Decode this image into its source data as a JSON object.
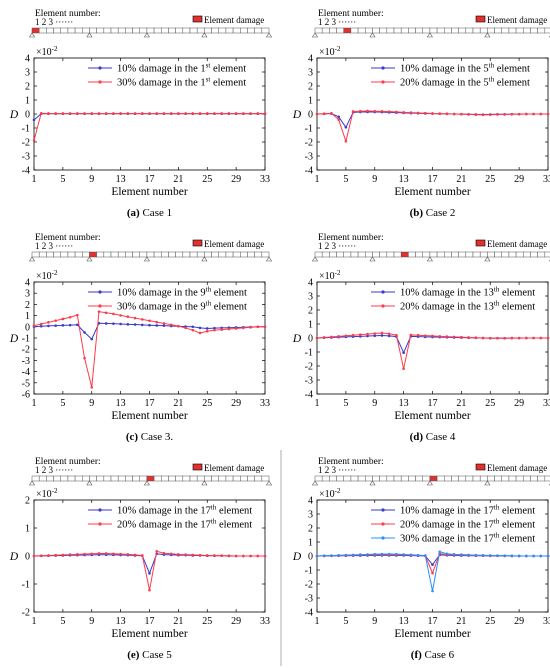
{
  "figure": {
    "beam_header": "Element number:",
    "beam_numbers": "1 2 3",
    "beam_dots": "······",
    "damage_legend": "Element damage",
    "xlabel": "Element number",
    "ylabel": "D",
    "multiplier": "×10",
    "multiplier_exp": "-2",
    "element_count": 33,
    "colors": {
      "blue": "#3a3acd",
      "red": "#ff3a4a",
      "lightblue": "#2a8cff",
      "damage": "#e03030"
    }
  },
  "chart_data": [
    {
      "type": "line",
      "caption": {
        "label": "(a)",
        "text": "Case 1"
      },
      "damaged_elements": [
        1
      ],
      "xticks": [
        1,
        5,
        9,
        13,
        17,
        21,
        25,
        29,
        33
      ],
      "yticks": [
        -4,
        -3,
        -2,
        -1,
        0,
        1,
        2,
        3,
        4
      ],
      "ylim": [
        -4,
        4
      ],
      "series": [
        {
          "legend": [
            "10% damage in the 1",
            "st",
            " element"
          ],
          "color": "#3a3acd",
          "values": [
            -0.42,
            0.02,
            0.02,
            0.02,
            0.02,
            0.02,
            0.02,
            0.02,
            0.02,
            0.02,
            0.02,
            0.02,
            0.02,
            0.02,
            0.02,
            0.02,
            0.02,
            0.02,
            0.02,
            0.02,
            0.02,
            0.02,
            0.02,
            0.02,
            0.02,
            0.02,
            0.02,
            0.02,
            0.02,
            0.02,
            0.02,
            0.02,
            0.02
          ]
        },
        {
          "legend": [
            "30% damage in the 1",
            "st",
            " element"
          ],
          "color": "#ff3a4a",
          "values": [
            -1.88,
            0.05,
            0.04,
            0.04,
            0.04,
            0.04,
            0.04,
            0.04,
            0.04,
            0.04,
            0.04,
            0.04,
            0.04,
            0.04,
            0.04,
            0.04,
            0.04,
            0.04,
            0.04,
            0.04,
            0.04,
            0.04,
            0.04,
            0.04,
            0.04,
            0.04,
            0.04,
            0.04,
            0.04,
            0.04,
            0.04,
            0.04,
            0.04
          ]
        }
      ]
    },
    {
      "type": "line",
      "caption": {
        "label": "(b)",
        "text": "Case 2"
      },
      "damaged_elements": [
        5
      ],
      "xticks": [
        1,
        5,
        9,
        13,
        17,
        21,
        25,
        29,
        33
      ],
      "yticks": [
        -4,
        -3,
        -2,
        -1,
        0,
        1,
        2,
        3,
        4
      ],
      "ylim": [
        -4,
        4
      ],
      "series": [
        {
          "legend": [
            "10% damage in the 5",
            "th",
            " element"
          ],
          "color": "#3a3acd",
          "values": [
            0,
            0.01,
            0.03,
            -0.2,
            -0.95,
            0.12,
            0.14,
            0.15,
            0.14,
            0.13,
            0.12,
            0.1,
            0.08,
            0.06,
            0.05,
            0.04,
            0.03,
            0.02,
            0.01,
            0,
            -0.01,
            -0.02,
            -0.03,
            -0.04,
            -0.03,
            -0.02,
            -0.02,
            -0.01,
            -0.01,
            0,
            0,
            0,
            0
          ]
        },
        {
          "legend": [
            "20% damage in the 5",
            "th",
            " element"
          ],
          "color": "#ff3a4a",
          "values": [
            0,
            0.02,
            0.05,
            -0.4,
            -1.95,
            0.18,
            0.2,
            0.22,
            0.2,
            0.19,
            0.17,
            0.15,
            0.12,
            0.1,
            0.08,
            0.06,
            0.04,
            0.02,
            0.01,
            0,
            -0.01,
            -0.03,
            -0.05,
            -0.06,
            -0.05,
            -0.04,
            -0.03,
            -0.02,
            -0.01,
            0,
            0,
            0,
            0
          ]
        }
      ]
    },
    {
      "type": "line",
      "caption": {
        "label": "(c)",
        "text": "Case 3."
      },
      "damaged_elements": [
        9
      ],
      "xticks": [
        1,
        5,
        9,
        13,
        17,
        21,
        25,
        29,
        33
      ],
      "yticks": [
        -6,
        -5,
        -4,
        -3,
        -2,
        -1,
        0,
        1,
        2,
        3,
        4
      ],
      "ylim": [
        -6,
        4
      ],
      "series": [
        {
          "legend": [
            "10% damage in the 9",
            "th",
            " element"
          ],
          "color": "#3a3acd",
          "values": [
            0.02,
            0.05,
            0.08,
            0.1,
            0.13,
            0.15,
            0.18,
            -0.5,
            -1.1,
            0.32,
            0.3,
            0.28,
            0.25,
            0.22,
            0.2,
            0.17,
            0.14,
            0.12,
            0.1,
            0.07,
            0.05,
            0.02,
            0,
            -0.1,
            -0.15,
            -0.12,
            -0.1,
            -0.08,
            -0.06,
            -0.04,
            -0.02,
            0,
            0
          ]
        },
        {
          "legend": [
            "30% damage in the 9",
            "th",
            " element"
          ],
          "color": "#ff3a4a",
          "values": [
            0.1,
            0.25,
            0.4,
            0.55,
            0.7,
            0.85,
            1.05,
            -2.8,
            -5.4,
            1.35,
            1.25,
            1.15,
            1.02,
            0.9,
            0.78,
            0.66,
            0.54,
            0.42,
            0.3,
            0.18,
            0.06,
            -0.1,
            -0.3,
            -0.55,
            -0.4,
            -0.3,
            -0.25,
            -0.2,
            -0.15,
            -0.1,
            -0.05,
            0,
            0
          ]
        }
      ]
    },
    {
      "type": "line",
      "caption": {
        "label": "(d)",
        "text": "Case 4"
      },
      "damaged_elements": [
        13
      ],
      "xticks": [
        1,
        5,
        9,
        13,
        17,
        21,
        25,
        29,
        33
      ],
      "yticks": [
        -4,
        -3,
        -2,
        -1,
        0,
        1,
        2,
        3,
        4
      ],
      "ylim": [
        -4,
        4
      ],
      "series": [
        {
          "legend": [
            "10% damage in the 13",
            "th",
            " element"
          ],
          "color": "#3a3acd",
          "values": [
            0,
            0.02,
            0.04,
            0.06,
            0.08,
            0.1,
            0.12,
            0.14,
            0.16,
            0.18,
            0.15,
            0.1,
            -1.05,
            0.12,
            0.1,
            0.08,
            0.07,
            0.06,
            0.05,
            0.04,
            0.03,
            0.02,
            0.01,
            0,
            -0.01,
            -0.01,
            -0.01,
            0,
            0,
            0,
            0,
            0,
            0
          ]
        },
        {
          "legend": [
            "20% damage in the 13",
            "th",
            " element"
          ],
          "color": "#ff3a4a",
          "values": [
            0,
            0.04,
            0.08,
            0.12,
            0.16,
            0.2,
            0.24,
            0.28,
            0.32,
            0.36,
            0.3,
            0.2,
            -2.2,
            0.22,
            0.2,
            0.17,
            0.15,
            0.12,
            0.1,
            0.08,
            0.06,
            0.04,
            0.02,
            0,
            -0.02,
            -0.02,
            -0.02,
            -0.01,
            -0.01,
            0,
            0,
            0,
            0
          ]
        }
      ]
    },
    {
      "type": "line",
      "caption": {
        "label": "(e)",
        "text": "Case 5"
      },
      "damaged_elements": [
        17
      ],
      "xticks": [
        1,
        5,
        9,
        13,
        17,
        21,
        25,
        29,
        33
      ],
      "yticks": [
        -2,
        -1,
        0,
        1,
        2
      ],
      "ylim": [
        -2,
        2
      ],
      "series": [
        {
          "legend": [
            "10% damage in the 17",
            "th",
            " element"
          ],
          "color": "#3a3acd",
          "values": [
            0,
            0.005,
            0.01,
            0.015,
            0.02,
            0.025,
            0.03,
            0.035,
            0.04,
            0.045,
            0.045,
            0.04,
            0.035,
            0.03,
            0.02,
            0.01,
            -0.62,
            0.08,
            0.05,
            0.04,
            0.03,
            0.03,
            0.02,
            0.02,
            0.01,
            0.01,
            0.01,
            0,
            0,
            0,
            0,
            0,
            0
          ]
        },
        {
          "legend": [
            "20% damage in the 17",
            "th",
            " element"
          ],
          "color": "#ff3a4a",
          "values": [
            0,
            0.01,
            0.02,
            0.03,
            0.04,
            0.05,
            0.06,
            0.07,
            0.08,
            0.09,
            0.09,
            0.08,
            0.07,
            0.06,
            0.04,
            0.02,
            -1.22,
            0.17,
            0.1,
            0.08,
            0.06,
            0.05,
            0.04,
            0.03,
            0.02,
            0.02,
            0.01,
            0.01,
            0,
            0,
            0,
            0,
            0
          ]
        }
      ]
    },
    {
      "type": "line",
      "caption": {
        "label": "(f)",
        "text": "Case 6"
      },
      "damaged_elements": [
        17
      ],
      "xticks": [
        1,
        5,
        9,
        13,
        17,
        21,
        25,
        29,
        33
      ],
      "yticks": [
        -4,
        -3,
        -2,
        -1,
        0,
        1,
        2,
        3,
        4
      ],
      "ylim": [
        -4,
        4
      ],
      "series": [
        {
          "legend": [
            "10% damage in the 17",
            "th",
            " element"
          ],
          "color": "#3a3acd",
          "values": [
            0,
            0.005,
            0.01,
            0.015,
            0.02,
            0.025,
            0.03,
            0.035,
            0.04,
            0.045,
            0.045,
            0.04,
            0.035,
            0.03,
            0.02,
            0.01,
            -0.62,
            0.08,
            0.05,
            0.04,
            0.03,
            0.03,
            0.02,
            0.02,
            0.01,
            0.01,
            0.01,
            0,
            0,
            0,
            0,
            0,
            0
          ]
        },
        {
          "legend": [
            "20% damage in the 17",
            "th",
            " element"
          ],
          "color": "#ff3a4a",
          "values": [
            0,
            0.01,
            0.02,
            0.03,
            0.04,
            0.05,
            0.06,
            0.07,
            0.08,
            0.09,
            0.09,
            0.08,
            0.07,
            0.06,
            0.04,
            0.02,
            -1.22,
            0.17,
            0.1,
            0.08,
            0.06,
            0.05,
            0.04,
            0.03,
            0.02,
            0.02,
            0.01,
            0.01,
            0,
            0,
            0,
            0,
            0
          ]
        },
        {
          "legend": [
            "30% damage in the 17",
            "th",
            " element"
          ],
          "color": "#2a8cff",
          "values": [
            0,
            0.02,
            0.03,
            0.05,
            0.07,
            0.08,
            0.1,
            0.11,
            0.13,
            0.14,
            0.14,
            0.13,
            0.11,
            0.09,
            0.06,
            0.03,
            -2.5,
            0.3,
            0.16,
            0.12,
            0.1,
            0.08,
            0.06,
            0.05,
            0.04,
            0.03,
            0.02,
            0.01,
            0.01,
            0,
            0,
            0,
            0
          ]
        }
      ]
    }
  ]
}
